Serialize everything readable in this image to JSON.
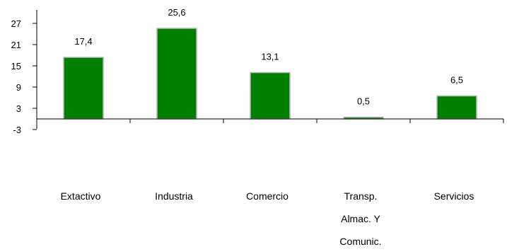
{
  "chart_data": {
    "type": "bar",
    "categories": [
      [
        "Extactivo"
      ],
      [
        "Industria"
      ],
      [
        "Comercio"
      ],
      [
        "Transp.",
        "Almac. Y",
        "Comunic."
      ],
      [
        "Servicios"
      ]
    ],
    "values": [
      17.4,
      25.6,
      13.1,
      0.5,
      6.5
    ],
    "value_labels": [
      "17,4",
      "25,6",
      "13,1",
      "0,5",
      "6,5"
    ],
    "y_ticks": [
      27,
      21,
      15,
      9,
      3,
      -3
    ],
    "y_tick_labels": [
      "27",
      "21",
      "15",
      "9",
      "3",
      "-3"
    ],
    "ylim": [
      -3,
      30
    ],
    "title": "",
    "xlabel": "",
    "ylabel": "",
    "grid": false,
    "legend": "none",
    "bar_color": "#008000"
  }
}
